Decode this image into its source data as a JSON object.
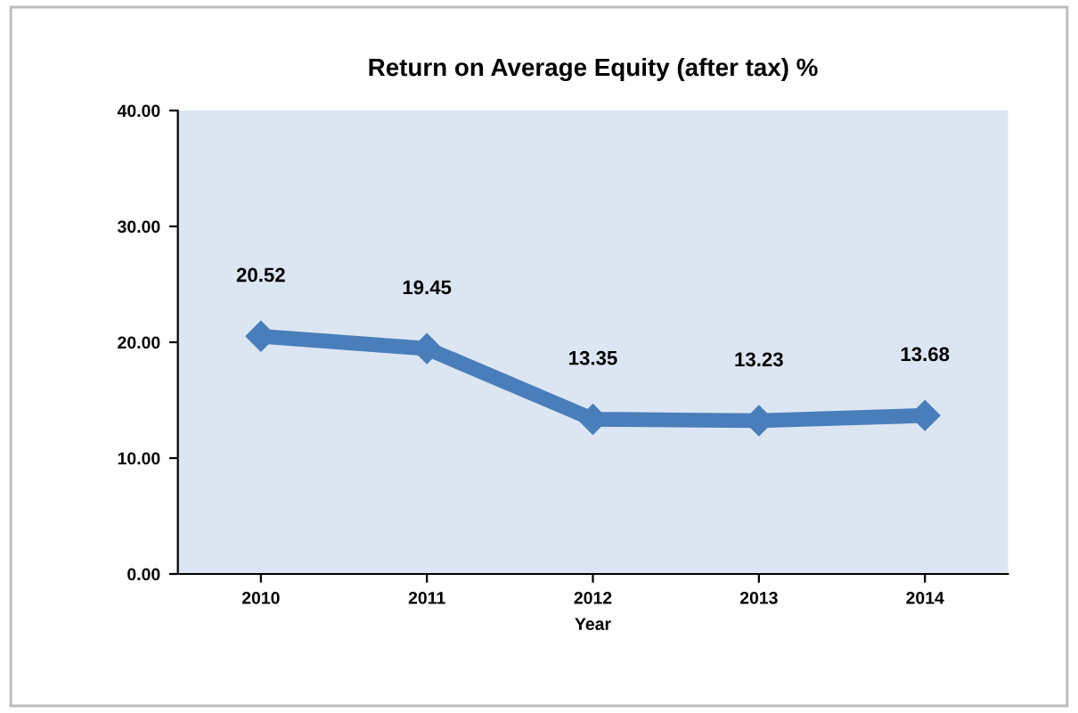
{
  "chart_data": {
    "type": "line",
    "title": "Return on Average Equity (after tax) %",
    "xlabel": "Year",
    "categories": [
      "2010",
      "2011",
      "2012",
      "2013",
      "2014"
    ],
    "series": [
      {
        "color": "#4a7ebb",
        "values": [
          20.52,
          19.45,
          13.35,
          13.23,
          13.68
        ]
      }
    ],
    "value_labels": [
      "20.52",
      "19.45",
      "13.35",
      "13.23",
      "13.68"
    ],
    "ylim": [
      0,
      40
    ],
    "yticks": [
      {
        "value": 0,
        "label": "0.00"
      },
      {
        "value": 10,
        "label": "10.00"
      },
      {
        "value": 20,
        "label": "20.00"
      },
      {
        "value": 30,
        "label": "30.00"
      },
      {
        "value": 40,
        "label": "40.00"
      }
    ],
    "grid": false,
    "marker": "diamond",
    "line_style": "solid"
  }
}
